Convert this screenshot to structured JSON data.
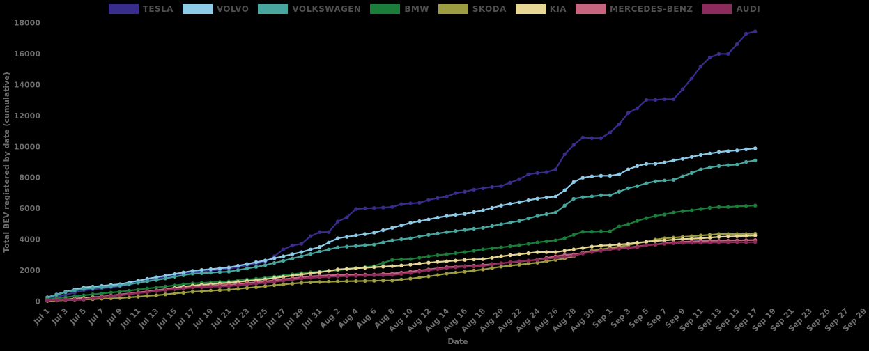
{
  "page": {
    "background": "#000000",
    "tick_color": "#6e6e6e",
    "legend_text_color": "#4f4f4f"
  },
  "axes": {
    "xlabel": "Date",
    "ylabel": "Total BEV registered by date (cumulative)"
  },
  "chart_data": {
    "type": "line",
    "title": "",
    "xlabel": "Date",
    "ylabel": "Total BEV registered by date (cumulative)",
    "ylim": [
      0,
      18000
    ],
    "y_ticks": [
      0,
      2000,
      4000,
      6000,
      8000,
      10000,
      12000,
      14000,
      16000,
      18000
    ],
    "grid": false,
    "legend_position": "top",
    "marker": "circle",
    "x_start_day": "Jul 1",
    "x_end_day_of_data": "Sep 17",
    "x_axis_span_days": 90,
    "x_tick_every_days": 2,
    "x_tick_labels": [
      "Jul 1",
      "Jul 3",
      "Jul 5",
      "Jul 7",
      "Jul 9",
      "Jul 11",
      "Jul 13",
      "Jul 15",
      "Jul 17",
      "Jul 19",
      "Jul 21",
      "Jul 23",
      "Jul 25",
      "Jul 27",
      "Jul 29",
      "Jul 31",
      "Aug 2",
      "Aug 4",
      "Aug 6",
      "Aug 8",
      "Aug 10",
      "Aug 12",
      "Aug 14",
      "Aug 16",
      "Aug 18",
      "Aug 20",
      "Aug 22",
      "Aug 24",
      "Aug 26",
      "Aug 28",
      "Aug 30",
      "Sep 1",
      "Sep 3",
      "Sep 5",
      "Sep 7",
      "Sep 9",
      "Sep 11",
      "Sep 13",
      "Sep 15",
      "Sep 17",
      "Sep 19",
      "Sep 21",
      "Sep 23",
      "Sep 25",
      "Sep 27",
      "Sep 29"
    ],
    "series": [
      {
        "name": "TESLA",
        "color": "#382d8c",
        "values": [
          150,
          280,
          420,
          560,
          700,
          770,
          830,
          900,
          970,
          1080,
          1200,
          1330,
          1460,
          1580,
          1700,
          1790,
          1870,
          1930,
          1980,
          2030,
          2090,
          2200,
          2320,
          2430,
          2540,
          2900,
          3350,
          3600,
          3710,
          4200,
          4470,
          4470,
          5150,
          5420,
          5960,
          6000,
          6020,
          6050,
          6090,
          6270,
          6320,
          6360,
          6540,
          6670,
          6760,
          6990,
          7080,
          7210,
          7300,
          7390,
          7440,
          7660,
          7890,
          8200,
          8290,
          8340,
          8520,
          9500,
          10100,
          10580,
          10540,
          10540,
          10900,
          11440,
          12160,
          12470,
          13010,
          13010,
          13060,
          13060,
          13700,
          14400,
          15170,
          15750,
          15980,
          15980,
          16610,
          17280,
          17430
        ]
      },
      {
        "name": "VOLVO",
        "color": "#8ecbe8",
        "values": [
          250,
          430,
          610,
          750,
          880,
          940,
          990,
          1050,
          1100,
          1210,
          1320,
          1440,
          1550,
          1650,
          1760,
          1860,
          1960,
          2020,
          2070,
          2130,
          2180,
          2290,
          2400,
          2520,
          2630,
          2770,
          2900,
          3040,
          3170,
          3340,
          3500,
          3790,
          4070,
          4160,
          4250,
          4340,
          4430,
          4590,
          4740,
          4900,
          5060,
          5170,
          5280,
          5400,
          5510,
          5580,
          5640,
          5760,
          5870,
          6030,
          6180,
          6290,
          6400,
          6520,
          6630,
          6700,
          6760,
          7170,
          7700,
          7980,
          8070,
          8110,
          8110,
          8200,
          8520,
          8740,
          8880,
          8880,
          8970,
          9100,
          9200,
          9330,
          9460,
          9550,
          9640,
          9700,
          9750,
          9820,
          9880
        ]
      },
      {
        "name": "VOLKSWAGEN",
        "color": "#47a69e",
        "values": [
          220,
          410,
          580,
          690,
          790,
          850,
          900,
          960,
          1010,
          1100,
          1190,
          1280,
          1370,
          1470,
          1580,
          1680,
          1780,
          1810,
          1840,
          1880,
          1910,
          2010,
          2110,
          2220,
          2320,
          2470,
          2610,
          2760,
          2900,
          3050,
          3200,
          3340,
          3480,
          3530,
          3570,
          3620,
          3660,
          3800,
          3930,
          4000,
          4070,
          4180,
          4290,
          4380,
          4470,
          4540,
          4610,
          4680,
          4740,
          4860,
          4970,
          5080,
          5190,
          5350,
          5510,
          5620,
          5730,
          6180,
          6620,
          6720,
          6770,
          6850,
          6850,
          7080,
          7300,
          7440,
          7620,
          7750,
          7800,
          7840,
          8070,
          8290,
          8520,
          8650,
          8740,
          8790,
          8830,
          9000,
          9100
        ]
      },
      {
        "name": "BMW",
        "color": "#1a7d3a",
        "values": [
          100,
          180,
          250,
          320,
          380,
          440,
          500,
          560,
          610,
          680,
          750,
          820,
          880,
          950,
          1020,
          1090,
          1150,
          1180,
          1220,
          1250,
          1280,
          1340,
          1400,
          1450,
          1510,
          1590,
          1670,
          1740,
          1820,
          1870,
          1910,
          1960,
          2000,
          2070,
          2140,
          2200,
          2270,
          2470,
          2670,
          2700,
          2720,
          2810,
          2900,
          2970,
          3030,
          3100,
          3170,
          3260,
          3350,
          3420,
          3480,
          3550,
          3620,
          3710,
          3800,
          3870,
          3930,
          4070,
          4290,
          4490,
          4490,
          4520,
          4520,
          4830,
          4970,
          5190,
          5370,
          5510,
          5600,
          5730,
          5820,
          5870,
          5960,
          6040,
          6090,
          6090,
          6130,
          6150,
          6180
        ]
      },
      {
        "name": "SKODA",
        "color": "#9c9c40",
        "values": [
          20,
          40,
          70,
          90,
          110,
          130,
          160,
          180,
          200,
          250,
          290,
          340,
          380,
          440,
          500,
          550,
          610,
          640,
          680,
          710,
          740,
          800,
          860,
          910,
          970,
          1030,
          1080,
          1140,
          1190,
          1220,
          1240,
          1260,
          1280,
          1290,
          1300,
          1310,
          1320,
          1330,
          1330,
          1400,
          1460,
          1530,
          1600,
          1690,
          1780,
          1850,
          1910,
          1980,
          2050,
          2140,
          2230,
          2300,
          2360,
          2430,
          2490,
          2580,
          2670,
          2760,
          2900,
          3120,
          3260,
          3350,
          3440,
          3530,
          3620,
          3750,
          3840,
          3980,
          4070,
          4110,
          4160,
          4200,
          4250,
          4290,
          4340,
          4340,
          4340,
          4340,
          4360
        ]
      },
      {
        "name": "KIA",
        "color": "#e6d795",
        "values": [
          30,
          70,
          110,
          160,
          200,
          250,
          290,
          340,
          380,
          460,
          540,
          620,
          700,
          780,
          860,
          940,
          1010,
          1060,
          1100,
          1150,
          1190,
          1250,
          1310,
          1360,
          1420,
          1500,
          1580,
          1650,
          1730,
          1800,
          1870,
          1960,
          2050,
          2090,
          2130,
          2160,
          2200,
          2230,
          2270,
          2310,
          2360,
          2430,
          2490,
          2540,
          2580,
          2630,
          2670,
          2700,
          2720,
          2810,
          2900,
          2970,
          3030,
          3100,
          3170,
          3170,
          3170,
          3260,
          3350,
          3440,
          3530,
          3590,
          3620,
          3660,
          3710,
          3780,
          3840,
          3890,
          3930,
          3980,
          4020,
          4040,
          4070,
          4110,
          4160,
          4180,
          4200,
          4220,
          4250
        ]
      },
      {
        "name": "MERCEDES-BENZ",
        "color": "#c7647e",
        "values": [
          60,
          80,
          110,
          130,
          150,
          220,
          290,
          360,
          430,
          500,
          570,
          630,
          700,
          760,
          810,
          870,
          920,
          960,
          990,
          1030,
          1060,
          1120,
          1170,
          1230,
          1280,
          1350,
          1420,
          1480,
          1550,
          1600,
          1640,
          1670,
          1690,
          1700,
          1710,
          1720,
          1730,
          1760,
          1780,
          1850,
          1910,
          1980,
          2050,
          2130,
          2200,
          2230,
          2260,
          2300,
          2340,
          2400,
          2450,
          2510,
          2560,
          2620,
          2690,
          2800,
          2900,
          2990,
          3030,
          3120,
          3210,
          3300,
          3350,
          3440,
          3480,
          3530,
          3620,
          3660,
          3750,
          3800,
          3840,
          3860,
          3890,
          3900,
          3910,
          3920,
          3930,
          3940,
          3950
        ]
      },
      {
        "name": "AUDI",
        "color": "#8c2b5c",
        "values": [
          50,
          70,
          90,
          110,
          120,
          190,
          250,
          320,
          380,
          450,
          520,
          580,
          650,
          710,
          770,
          820,
          880,
          900,
          930,
          950,
          970,
          1030,
          1080,
          1140,
          1190,
          1260,
          1320,
          1390,
          1460,
          1510,
          1550,
          1580,
          1600,
          1620,
          1640,
          1660,
          1680,
          1680,
          1690,
          1760,
          1820,
          1910,
          2000,
          2070,
          2140,
          2190,
          2230,
          2250,
          2270,
          2360,
          2450,
          2520,
          2580,
          2620,
          2670,
          2740,
          2810,
          2870,
          2940,
          3080,
          3170,
          3260,
          3350,
          3390,
          3440,
          3480,
          3620,
          3660,
          3710,
          3750,
          3770,
          3780,
          3780,
          3790,
          3800,
          3800,
          3810,
          3810,
          3820
        ]
      }
    ]
  }
}
